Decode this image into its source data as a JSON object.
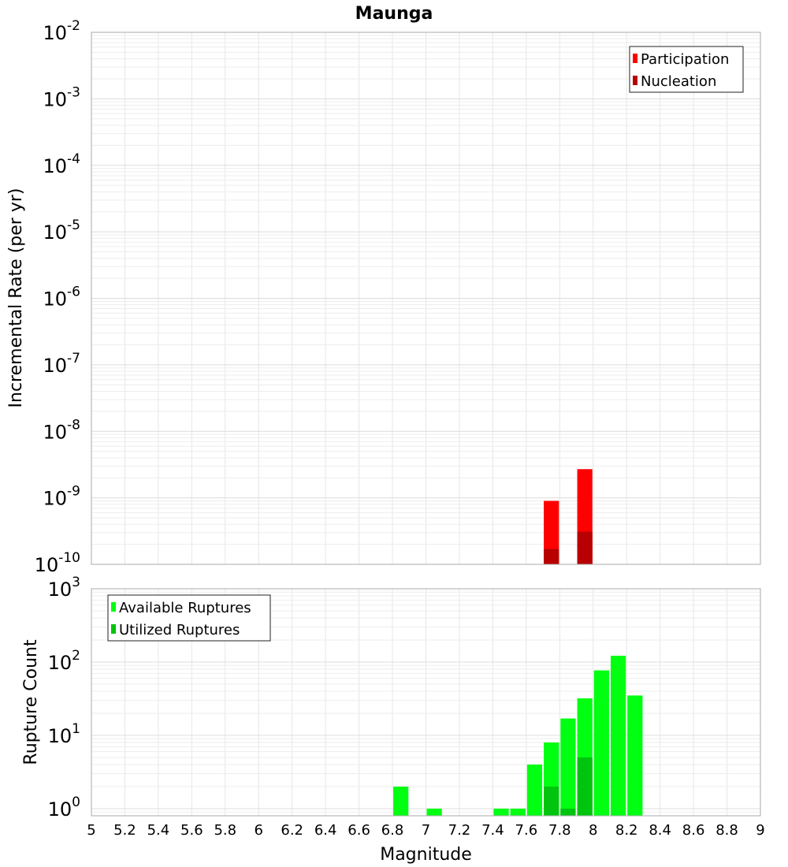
{
  "chart_data": [
    {
      "type": "bar",
      "title": "Maunga",
      "ylabel": "Incremental Rate (per yr)",
      "yscale": "log",
      "ylim": [
        1e-10,
        0.01
      ],
      "xlim": [
        5,
        9
      ],
      "bin_width": 0.1,
      "grid": true,
      "legend_position": "top-right",
      "y_ticks": [
        {
          "base": "10",
          "exp": "-10"
        },
        {
          "base": "10",
          "exp": "-9"
        },
        {
          "base": "10",
          "exp": "-8"
        },
        {
          "base": "10",
          "exp": "-7"
        },
        {
          "base": "10",
          "exp": "-6"
        },
        {
          "base": "10",
          "exp": "-5"
        },
        {
          "base": "10",
          "exp": "-4"
        },
        {
          "base": "10",
          "exp": "-3"
        },
        {
          "base": "10",
          "exp": "-2"
        }
      ],
      "series": [
        {
          "name": "Participation",
          "color": "#ff0000",
          "x": [
            7.75,
            7.95
          ],
          "values": [
            9e-10,
            2.7e-09
          ]
        },
        {
          "name": "Nucleation",
          "color": "#b80000",
          "x": [
            7.75,
            7.95
          ],
          "values": [
            1.7e-10,
            3.1e-10
          ]
        }
      ]
    },
    {
      "type": "bar",
      "ylabel": "Rupture Count",
      "xlabel": "Magnitude",
      "yscale": "log",
      "ylim": [
        0.8,
        1000
      ],
      "xlim": [
        5,
        9
      ],
      "bin_width": 0.1,
      "grid": true,
      "legend_position": "top-left",
      "x_ticks": [
        "5",
        "5.2",
        "5.4",
        "5.6",
        "5.8",
        "6",
        "6.2",
        "6.4",
        "6.6",
        "6.8",
        "7",
        "7.2",
        "7.4",
        "7.6",
        "7.8",
        "8",
        "8.2",
        "8.4",
        "8.6",
        "8.8",
        "9"
      ],
      "y_ticks": [
        {
          "base": "10",
          "exp": "0"
        },
        {
          "base": "10",
          "exp": "1"
        },
        {
          "base": "10",
          "exp": "2"
        },
        {
          "base": "10",
          "exp": "3"
        }
      ],
      "series": [
        {
          "name": "Available Ruptures",
          "color": "#00ff11",
          "x": [
            6.85,
            7.05,
            7.45,
            7.55,
            7.65,
            7.75,
            7.85,
            7.95,
            8.05,
            8.15,
            8.25
          ],
          "values": [
            2,
            1,
            1,
            1,
            4,
            8,
            17,
            32,
            77,
            122,
            35
          ]
        },
        {
          "name": "Utilized Ruptures",
          "color": "#00c40d",
          "x": [
            7.75,
            7.85,
            7.95
          ],
          "values": [
            2,
            1,
            5
          ]
        }
      ]
    }
  ]
}
